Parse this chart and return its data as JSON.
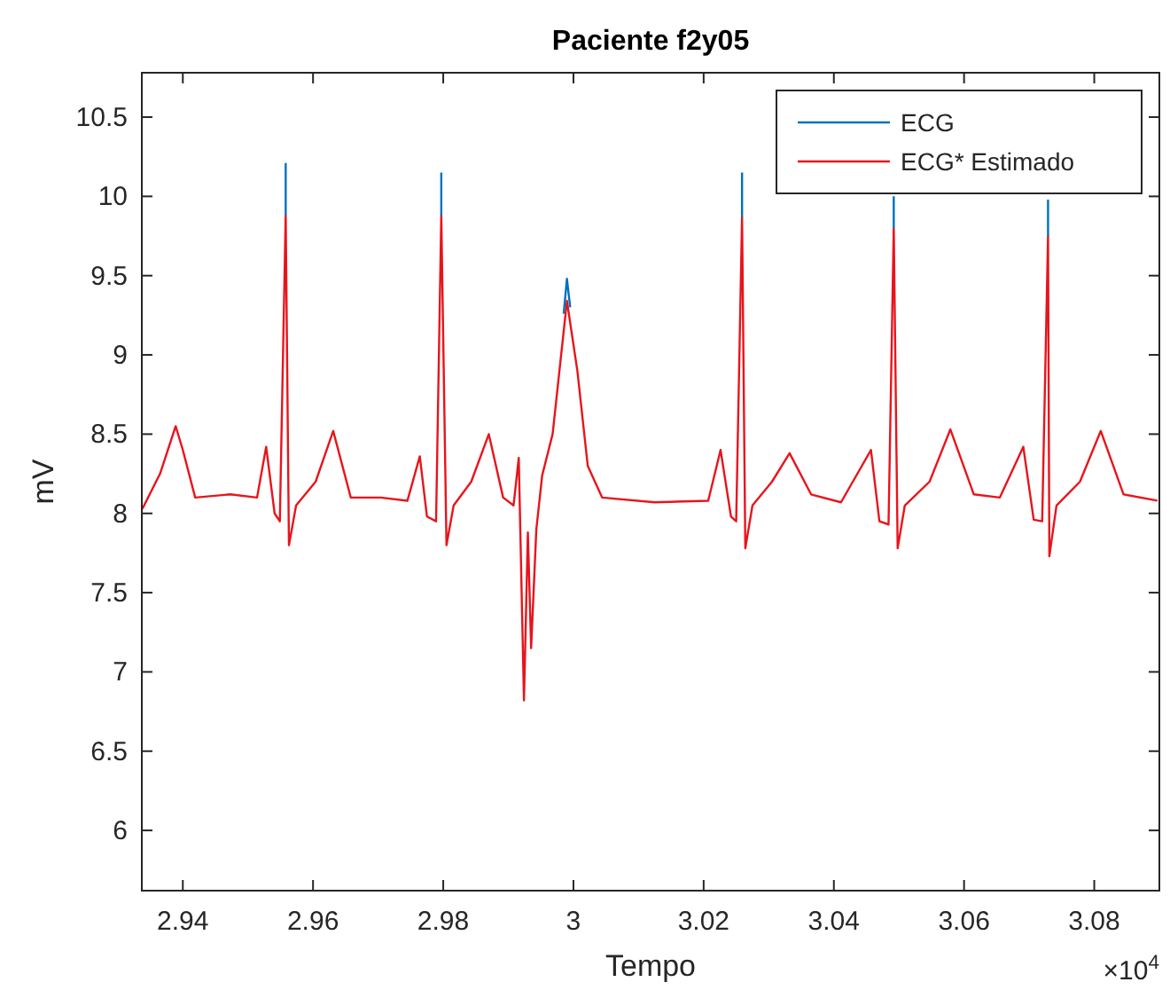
{
  "chart_data": {
    "type": "line",
    "title": "Paciente f2y05",
    "xlabel": "Tempo",
    "ylabel": "mV",
    "annotations": [
      "×10$^{4}$"
    ],
    "x": [
      2.9338,
      2.9365,
      2.9389,
      2.94,
      2.9419,
      2.9473,
      2.9514,
      2.9528,
      2.9541,
      2.9549,
      2.9558,
      2.9563,
      2.9574,
      2.9604,
      2.9631,
      2.9658,
      2.9704,
      2.9745,
      2.9764,
      2.9775,
      2.9789,
      2.9797,
      2.9805,
      2.9816,
      2.9843,
      2.987,
      2.9892,
      2.9908,
      2.9916,
      2.9924,
      2.993,
      2.9935,
      2.9943,
      2.9952,
      2.9968,
      2.999,
      3.0006,
      3.0022,
      3.0044,
      3.0125,
      3.0207,
      3.0226,
      3.0242,
      3.025,
      3.0259,
      3.0264,
      3.0275,
      3.0305,
      3.0332,
      3.0365,
      3.0411,
      3.0457,
      3.047,
      3.0484,
      3.0492,
      3.0498,
      3.0509,
      3.0547,
      3.0579,
      3.0615,
      3.0655,
      3.0691,
      3.0707,
      3.072,
      3.0729,
      3.0731,
      3.0742,
      3.0778,
      3.081,
      3.0845,
      3.0897
    ],
    "series": [
      {
        "name": "ECG",
        "color": "#0072bd",
        "x": [
          2.9558,
          2.9558,
          null,
          2.9797,
          2.9797,
          null,
          2.9985,
          2.999,
          2.9995,
          null,
          3.0259,
          3.0259,
          null,
          3.0492,
          3.0492,
          null,
          3.0729,
          3.0729
        ],
        "values": [
          9.88,
          10.21,
          null,
          9.88,
          10.15,
          null,
          9.26,
          9.48,
          9.3,
          null,
          9.87,
          10.15,
          null,
          9.8,
          10.0,
          null,
          9.75,
          9.98
        ]
      },
      {
        "name": "ECG* Estimado",
        "color": "#e8141c",
        "values": [
          8.03,
          8.25,
          8.55,
          8.4,
          8.1,
          8.12,
          8.1,
          8.42,
          8.0,
          7.95,
          9.88,
          7.8,
          8.05,
          8.2,
          8.52,
          8.1,
          8.1,
          8.08,
          8.36,
          7.98,
          7.95,
          9.88,
          7.8,
          8.05,
          8.2,
          8.5,
          8.1,
          8.05,
          8.35,
          6.82,
          7.88,
          7.15,
          7.9,
          8.24,
          8.5,
          9.34,
          8.9,
          8.3,
          8.1,
          8.07,
          8.08,
          8.4,
          7.98,
          7.95,
          9.87,
          7.78,
          8.05,
          8.2,
          8.38,
          8.12,
          8.07,
          8.4,
          7.95,
          7.93,
          9.8,
          7.78,
          8.05,
          8.2,
          8.53,
          8.12,
          8.1,
          8.42,
          7.96,
          7.95,
          9.75,
          7.73,
          8.05,
          8.2,
          8.52,
          8.12,
          8.08
        ]
      }
    ],
    "xlim": [
      2.9337,
      3.09
    ],
    "xticks": [
      2.94,
      2.96,
      2.98,
      3,
      3.02,
      3.04,
      3.06,
      3.08
    ],
    "ylim": [
      5.62,
      10.78
    ],
    "yticks": [
      6,
      6.5,
      7,
      7.5,
      8,
      8.5,
      9,
      9.5,
      10,
      10.5
    ],
    "legend": "top right",
    "line_style": "solid"
  }
}
